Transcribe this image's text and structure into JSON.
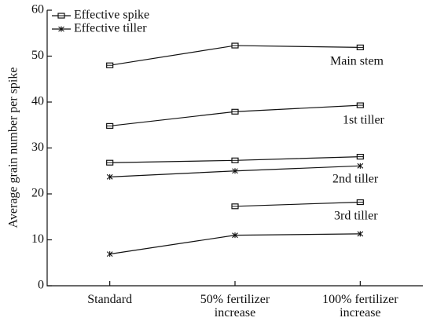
{
  "chart_data": {
    "type": "line",
    "y_label": "Average grain number per spike",
    "categories": [
      [
        "Standard"
      ],
      [
        "50% fertilizer",
        "increase"
      ],
      [
        "100% fertilizer",
        "increase"
      ]
    ],
    "ylim": [
      0,
      60
    ],
    "yticks": [
      0,
      10,
      20,
      30,
      40,
      50,
      60
    ],
    "legend": [
      {
        "name": "Effective spike",
        "marker": "square"
      },
      {
        "name": "Effective tiller",
        "marker": "x"
      }
    ],
    "series": [
      {
        "marker": "square",
        "color": "#111",
        "values": [
          48.0,
          52.3,
          51.9
        ]
      },
      {
        "marker": "square",
        "color": "#111",
        "values": [
          34.8,
          37.9,
          39.3
        ]
      },
      {
        "marker": "square",
        "color": "#111",
        "values": [
          26.8,
          27.3,
          28.1
        ]
      },
      {
        "marker": "x",
        "color": "#111",
        "values": [
          23.7,
          25.0,
          26.1
        ]
      },
      {
        "marker": "square",
        "color": "#111",
        "values": [
          null,
          17.3,
          18.2
        ]
      },
      {
        "marker": "x",
        "color": "#111",
        "values": [
          6.9,
          11.0,
          11.3
        ]
      }
    ],
    "annotations": [
      "Main stem",
      "1st tiller",
      "2nd tiller",
      "3rd tiller"
    ]
  }
}
